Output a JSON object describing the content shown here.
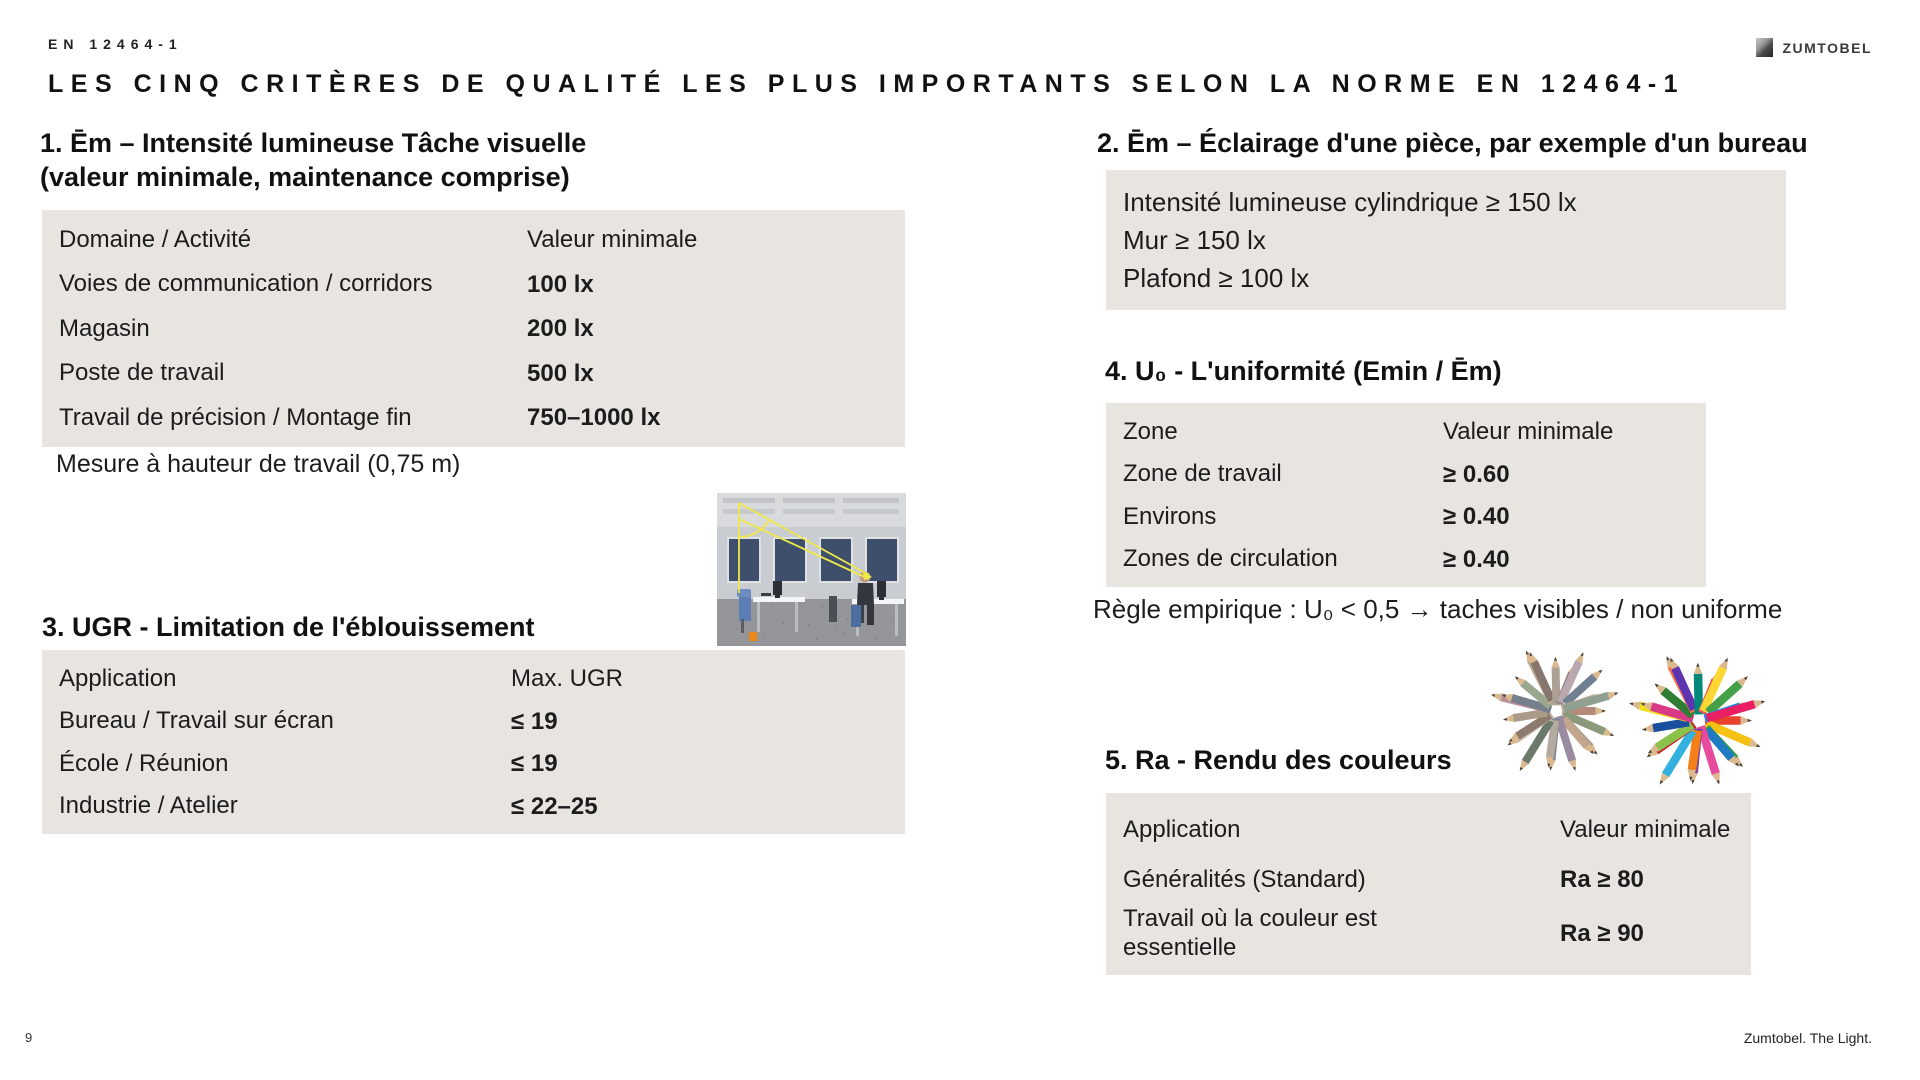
{
  "meta": {
    "standard_ref": "EN 12464-1",
    "title": "LES CINQ CRITÈRES DE QUALITÉ LES PLUS IMPORTANTS SELON LA NORME EN 12464-1",
    "brand": "ZUMTOBEL",
    "page_number": "9",
    "footer_tagline": "Zumtobel. The Light."
  },
  "colors": {
    "table_bg": "#e8e4df",
    "text": "#1c1c1c",
    "glare_line_yellow": "#eee84a",
    "window_blue": "#3d4f6b",
    "accent_orange": "#e8881a"
  },
  "section1": {
    "heading_line1": "1. Ēm – Intensité lumineuse Tâche visuelle",
    "heading_line2": "(valeur minimale, maintenance comprise)",
    "table": {
      "headers": [
        "Domaine / Activité",
        "Valeur minimale"
      ],
      "rows": [
        [
          "Voies de communication / corridors",
          "100 lx"
        ],
        [
          "Magasin",
          "200 lx"
        ],
        [
          "Poste de travail",
          "500 lx"
        ],
        [
          "Travail de précision / Montage fin",
          "750–1000 lx"
        ]
      ]
    },
    "note": "Mesure à hauteur de travail (0,75 m)"
  },
  "section2": {
    "heading": "2. Ēm – Éclairage d'une pièce, par exemple d'un bureau",
    "lines": [
      "Intensité lumineuse cylindrique  ≥ 150 lx",
      "Mur ≥ 150 lx",
      "Plafond ≥ 100 lx"
    ]
  },
  "section3": {
    "heading": "3. UGR - Limitation de l'éblouissement",
    "table": {
      "headers": [
        "Application",
        "Max. UGR"
      ],
      "rows": [
        [
          "Bureau / Travail sur écran",
          "≤ 19"
        ],
        [
          "École / Réunion",
          "≤ 19"
        ],
        [
          "Industrie / Atelier",
          "≤ 22–25"
        ]
      ]
    }
  },
  "section4": {
    "heading": "4. U₀  - L'uniformité (Emin / Ēm)",
    "table": {
      "headers": [
        "Zone",
        "Valeur minimale"
      ],
      "rows": [
        [
          "Zone de travail",
          "≥ 0.60"
        ],
        [
          "Environs",
          "≥ 0.40"
        ],
        [
          "Zones de circulation",
          "≥ 0.40"
        ]
      ]
    },
    "rule": "Règle empirique : U₀ < 0,5 → taches visibles / non uniforme"
  },
  "section5": {
    "heading": "5. Ra - Rendu des couleurs",
    "table": {
      "headers": [
        "Application",
        "Valeur minimale"
      ],
      "rows": [
        [
          "Généralités (Standard)",
          "Ra ≥ 80"
        ],
        [
          "Travail où la couleur est\nessentielle",
          "Ra ≥ 90"
        ]
      ]
    }
  },
  "pencil_palettes": {
    "muted": [
      "#b58a7a",
      "#8a9a7b",
      "#a7a08b",
      "#c4a58e",
      "#9b8ba0",
      "#7d8a94",
      "#b5a9a0",
      "#6b7a6a",
      "#c9b8a8",
      "#8d7b6e",
      "#a89b88",
      "#b7909a",
      "#75808b",
      "#9aa78f",
      "#c2ab94",
      "#86766d",
      "#ada095",
      "#97867f",
      "#b9a8b0",
      "#708090",
      "#bfae9e",
      "#8f9f90"
    ],
    "vivid": [
      "#e8412c",
      "#f6c211",
      "#2f9e44",
      "#1f7ac4",
      "#e84b9d",
      "#7a3fa0",
      "#f57f17",
      "#35b1e0",
      "#c42430",
      "#8bc34a",
      "#194f9e",
      "#f1df1e",
      "#d93a86",
      "#2e7d32",
      "#ff7043",
      "#5e35b1",
      "#00897b",
      "#ef5350",
      "#fdd835",
      "#43a047",
      "#1e88e5",
      "#e91e63"
    ]
  }
}
